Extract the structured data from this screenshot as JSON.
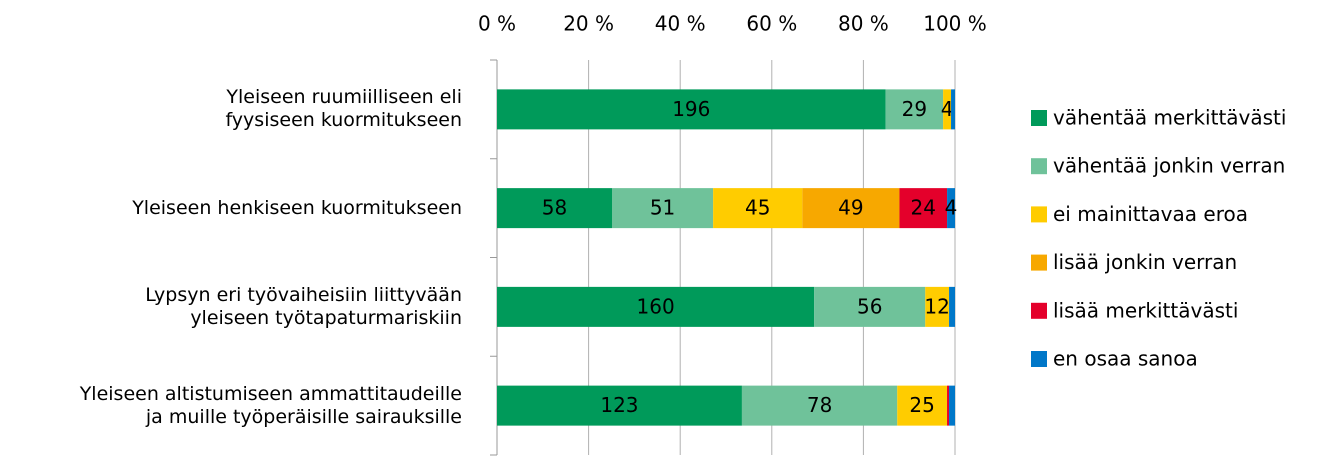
{
  "chart_data": {
    "type": "bar",
    "orientation": "horizontal",
    "stacking": "percent",
    "categories": [
      "Yleiseen ruumiilliseen eli\nfyysiseen kuormitukseen",
      "Yleiseen henkiseen kuormitukseen",
      "Lypsyn eri työvaiheisiin liittyvään\nyleiseen työtapaturmariskiin",
      "Yleiseen altistumiseen ammattitaudeille\nja muille työperäisille sairauksille"
    ],
    "series": [
      {
        "name": "vähentää merkittävästi",
        "color": "#009a5a",
        "values": [
          196,
          58,
          160,
          123
        ]
      },
      {
        "name": "vähentää jonkin verran",
        "color": "#6fc29a",
        "values": [
          29,
          51,
          56,
          78
        ]
      },
      {
        "name": "ei mainittavaa eroa",
        "color": "#ffcc00",
        "values": [
          4,
          45,
          12,
          25
        ]
      },
      {
        "name": "lisää jonkin verran",
        "color": "#f7a800",
        "values": [
          0,
          49,
          0,
          0
        ]
      },
      {
        "name": "lisää merkittävästi",
        "color": "#e4002b",
        "values": [
          0,
          24,
          0,
          1
        ]
      },
      {
        "name": "en osaa sanoa",
        "color": "#0077c8",
        "values": [
          2,
          4,
          3,
          3
        ]
      }
    ],
    "xlim": [
      0,
      100
    ],
    "xticks": [
      {
        "value": 0,
        "label": "0 %"
      },
      {
        "value": 20,
        "label": "20 %"
      },
      {
        "value": 40,
        "label": "40 %"
      },
      {
        "value": 60,
        "label": "60 %"
      },
      {
        "value": 80,
        "label": "80 %"
      },
      {
        "value": 100,
        "label": "100 %"
      }
    ],
    "grid": true,
    "legend": "right"
  }
}
